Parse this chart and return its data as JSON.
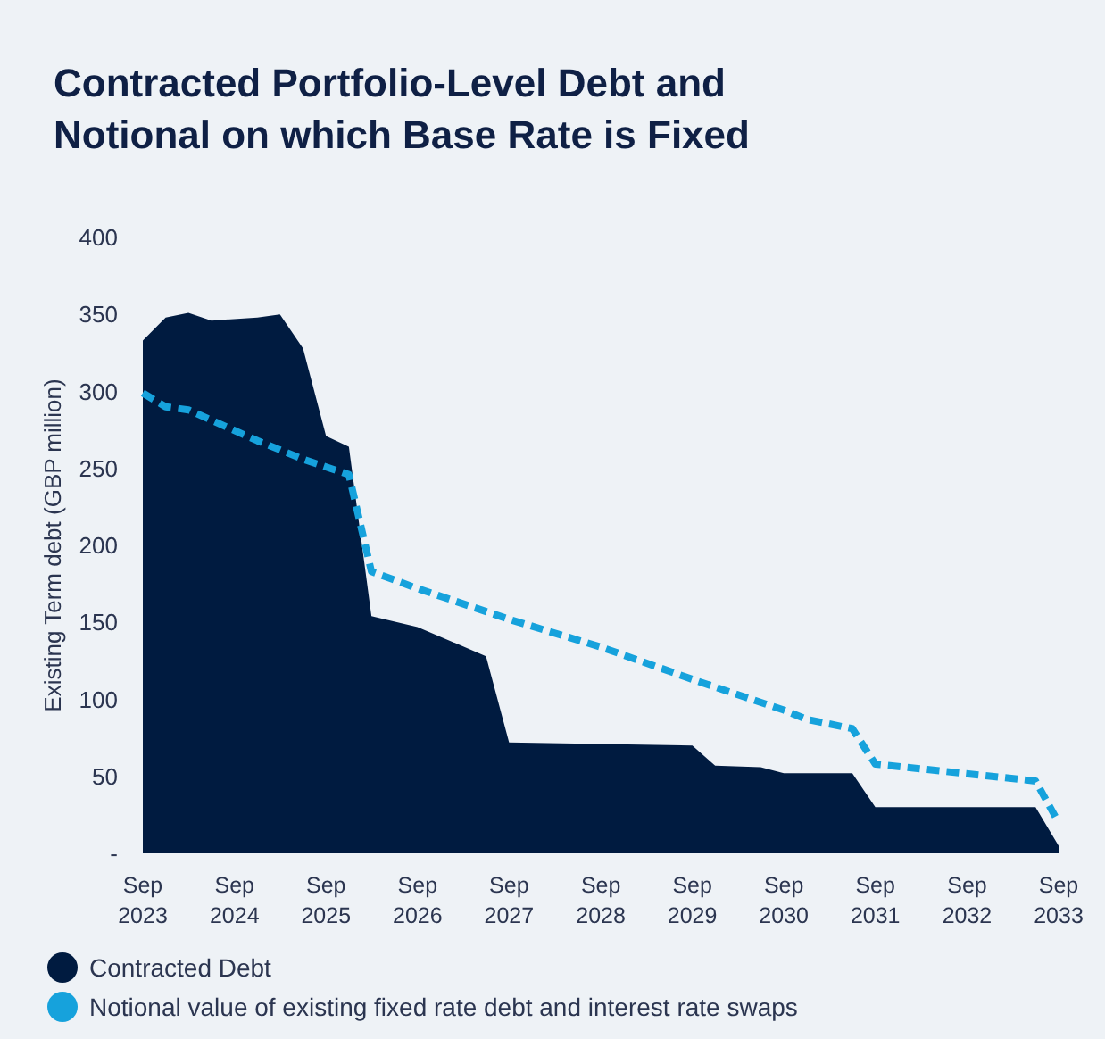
{
  "chart_data": {
    "type": "area",
    "title": "Contracted Portfolio-Level Debt and Notional on which Base Rate is Fixed",
    "ylabel": "Existing Term debt (GBP million)",
    "xlim": [
      "2023-09",
      "2033-09"
    ],
    "xticks": [
      {
        "value": "2023-09",
        "label": "Sep 2023"
      },
      {
        "value": "2024-09",
        "label": "Sep 2024"
      },
      {
        "value": "2025-09",
        "label": "Sep 2025"
      },
      {
        "value": "2026-09",
        "label": "Sep 2026"
      },
      {
        "value": "2027-09",
        "label": "Sep 2027"
      },
      {
        "value": "2028-09",
        "label": "Sep 2028"
      },
      {
        "value": "2029-09",
        "label": "Sep 2029"
      },
      {
        "value": "2030-09",
        "label": "Sep 2030"
      },
      {
        "value": "2031-09",
        "label": "Sep 2031"
      },
      {
        "value": "2032-09",
        "label": "Sep 2032"
      },
      {
        "value": "2033-09",
        "label": "Sep 2033"
      }
    ],
    "ylim": [
      0,
      400
    ],
    "yticks": [
      {
        "value": 0,
        "label": "-"
      },
      50,
      100,
      150,
      200,
      250,
      300,
      350,
      400
    ],
    "grid": false,
    "legend": "bottom",
    "series": [
      {
        "name": "Contracted Debt",
        "color": "#001b40",
        "x": [
          "2023-09",
          "2023-12",
          "2024-03",
          "2024-06",
          "2024-12",
          "2025-03",
          "2025-06",
          "2025-09",
          "2025-12",
          "2026-03",
          "2026-09",
          "2027-06",
          "2027-09",
          "2028-09",
          "2029-09",
          "2029-12",
          "2030-06",
          "2030-09",
          "2031-06",
          "2031-09",
          "2033-06",
          "2033-09"
        ],
        "values": [
          333,
          348,
          351,
          346,
          348,
          350,
          328,
          271,
          264,
          154,
          147,
          128,
          72,
          71,
          70,
          57,
          56,
          52,
          52,
          30,
          30,
          5
        ]
      },
      {
        "name": "Notional value of existing fixed rate debt and interest rate swaps",
        "type": "line",
        "line_style": "dashed",
        "marker": "none",
        "color": "#16a2dc",
        "x": [
          "2023-09",
          "2023-12",
          "2024-03",
          "2024-12",
          "2025-06",
          "2025-12",
          "2026-03",
          "2026-09",
          "2027-09",
          "2028-09",
          "2029-09",
          "2030-09",
          "2030-12",
          "2031-06",
          "2031-09",
          "2033-06",
          "2033-09"
        ],
        "values": [
          299,
          290,
          288,
          268,
          256,
          246,
          183,
          172,
          152,
          134,
          113,
          93,
          87,
          81,
          58,
          47,
          20
        ]
      }
    ]
  }
}
